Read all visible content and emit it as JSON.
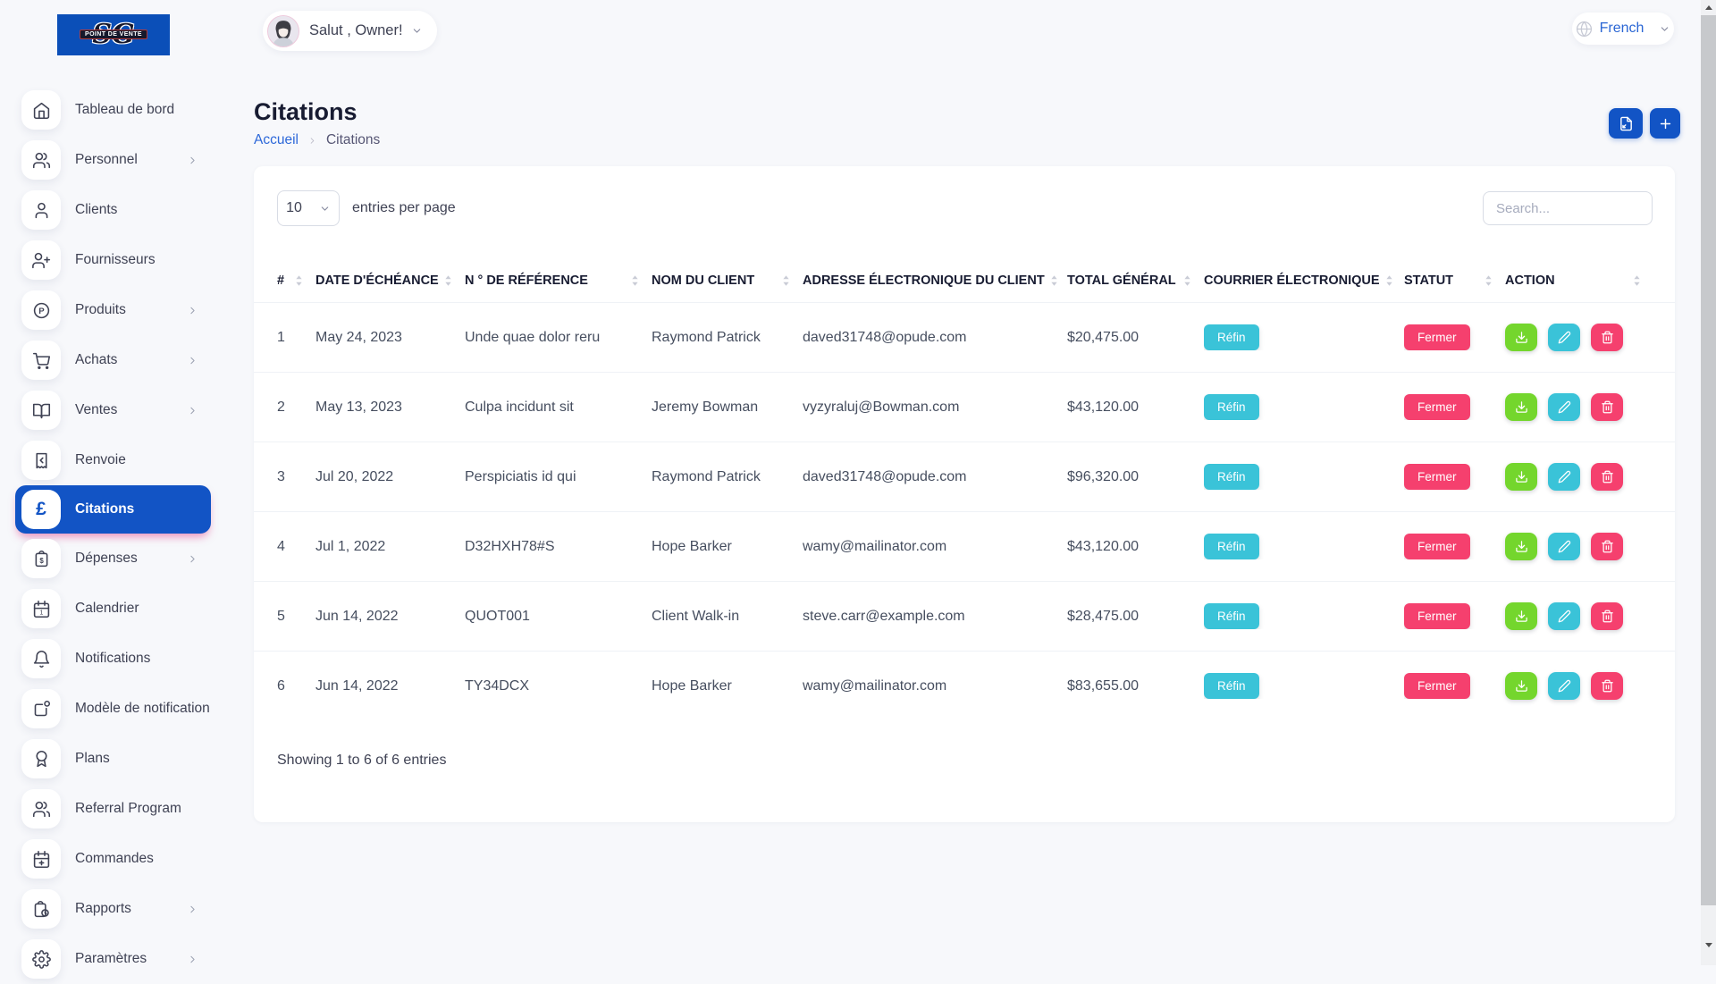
{
  "app": {
    "logo_monogram": "SG",
    "logo_banner": "POINT DE VENTE"
  },
  "header": {
    "greeting": "Salut , Owner!",
    "language": "French"
  },
  "page": {
    "title": "Citations",
    "breadcrumb_home": "Accueil",
    "breadcrumb_current": "Citations"
  },
  "colors": {
    "primary_blue": "#1254c5",
    "logo_blue": "#0b4fb8",
    "link_blue": "#2d68d9",
    "badge_cyan": "#3ac3d8",
    "badge_pink": "#f5406e",
    "action_green": "#74d62d",
    "page_background": "#f7f8fb"
  },
  "sidebar": {
    "items": [
      {
        "label": "Tableau de bord",
        "icon": "home-icon",
        "has_chevron": false,
        "active": false
      },
      {
        "label": "Personnel",
        "icon": "users-icon",
        "has_chevron": true,
        "active": false
      },
      {
        "label": "Clients",
        "icon": "user-icon",
        "has_chevron": false,
        "active": false
      },
      {
        "label": "Fournisseurs",
        "icon": "user-plus-icon",
        "has_chevron": false,
        "active": false
      },
      {
        "label": "Produits",
        "icon": "product-icon",
        "has_chevron": true,
        "active": false
      },
      {
        "label": "Achats",
        "icon": "cart-icon",
        "has_chevron": true,
        "active": false
      },
      {
        "label": "Ventes",
        "icon": "book-icon",
        "has_chevron": true,
        "active": false
      },
      {
        "label": "Renvoie",
        "icon": "receipt-icon",
        "has_chevron": false,
        "active": false
      },
      {
        "label": "Citations",
        "icon": "pound-icon",
        "has_chevron": false,
        "active": true
      },
      {
        "label": "Dépenses",
        "icon": "expense-icon",
        "has_chevron": true,
        "active": false
      },
      {
        "label": "Calendrier",
        "icon": "calendar-icon",
        "has_chevron": false,
        "active": false
      },
      {
        "label": "Notifications",
        "icon": "bell-icon",
        "has_chevron": false,
        "active": false
      },
      {
        "label": "Modèle de notification",
        "icon": "notification-template-icon",
        "has_chevron": false,
        "active": false
      },
      {
        "label": "Plans",
        "icon": "award-icon",
        "has_chevron": false,
        "active": false
      },
      {
        "label": "Referral Program",
        "icon": "referral-icon",
        "has_chevron": false,
        "active": false
      },
      {
        "label": "Commandes",
        "icon": "calendar-plus-icon",
        "has_chevron": false,
        "active": false
      },
      {
        "label": "Rapports",
        "icon": "report-icon",
        "has_chevron": true,
        "active": false
      },
      {
        "label": "Paramètres",
        "icon": "gear-icon",
        "has_chevron": true,
        "active": false
      }
    ]
  },
  "toolbar": {
    "entries_per_page_value": "10",
    "entries_per_page_label": "entries per page",
    "search_placeholder": "Search..."
  },
  "table": {
    "headers": [
      "#",
      "DATE D'ÉCHÉANCE",
      "N ° DE RÉFÉRENCE",
      "NOM DU CLIENT",
      "ADRESSE ÉLECTRONIQUE DU CLIENT",
      "TOTAL GÉNÉRAL",
      "COURRIER ÉLECTRONIQUE",
      "STATUT",
      "ACTION"
    ],
    "rows": [
      {
        "num": "1",
        "due_date": "May 24, 2023",
        "reference": "Unde quae dolor reru",
        "client": "Raymond Patrick",
        "email": "daved31748@opude.com",
        "total": "$20,475.00",
        "courrier": "Réfin",
        "statut": "Fermer"
      },
      {
        "num": "2",
        "due_date": "May 13, 2023",
        "reference": "Culpa incidunt sit",
        "client": "Jeremy Bowman",
        "email": "vyzyraluj@Bowman.com",
        "total": "$43,120.00",
        "courrier": "Réfin",
        "statut": "Fermer"
      },
      {
        "num": "3",
        "due_date": "Jul 20, 2022",
        "reference": "Perspiciatis id qui",
        "client": "Raymond Patrick",
        "email": "daved31748@opude.com",
        "total": "$96,320.00",
        "courrier": "Réfin",
        "statut": "Fermer"
      },
      {
        "num": "4",
        "due_date": "Jul 1, 2022",
        "reference": "D32HXH78#S",
        "client": "Hope Barker",
        "email": "wamy@mailinator.com",
        "total": "$43,120.00",
        "courrier": "Réfin",
        "statut": "Fermer"
      },
      {
        "num": "5",
        "due_date": "Jun 14, 2022",
        "reference": "QUOT001",
        "client": "Client Walk-in",
        "email": "steve.carr@example.com",
        "total": "$28,475.00",
        "courrier": "Réfin",
        "statut": "Fermer"
      },
      {
        "num": "6",
        "due_date": "Jun 14, 2022",
        "reference": "TY34DCX",
        "client": "Hope Barker",
        "email": "wamy@mailinator.com",
        "total": "$83,655.00",
        "courrier": "Réfin",
        "statut": "Fermer"
      }
    ],
    "footer": "Showing 1 to 6 of 6 entries"
  }
}
